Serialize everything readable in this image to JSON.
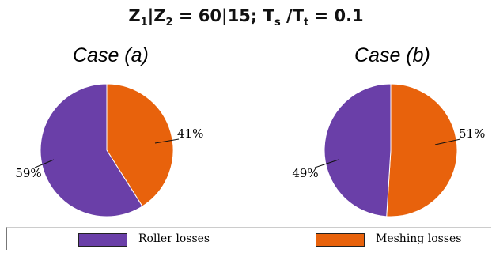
{
  "title": {
    "z1": "Z",
    "z1_sub": "1",
    "sep1": "|",
    "z2": "Z",
    "z2_sub": "2",
    "eq1": " = 60|15; ",
    "ts": "T",
    "ts_sub": "s",
    "slash": " /",
    "tt": "T",
    "tt_sub": "t",
    "eq2": " = 0.1"
  },
  "chart_data": [
    {
      "type": "pie",
      "title": "Case (a)",
      "categories": [
        "Roller losses",
        "Meshing losses"
      ],
      "values": [
        59,
        41
      ],
      "labels": [
        "59%",
        "41%"
      ],
      "colors": [
        "#6a3fa8",
        "#e8620c"
      ]
    },
    {
      "type": "pie",
      "title": "Case (b)",
      "categories": [
        "Roller losses",
        "Meshing losses"
      ],
      "values": [
        49,
        51
      ],
      "labels": [
        "49%",
        "51%"
      ],
      "colors": [
        "#6a3fa8",
        "#e8620c"
      ]
    }
  ],
  "legend": {
    "position": "bottom",
    "items": [
      {
        "label": "Roller losses",
        "color": "#6a3fa8"
      },
      {
        "label": "Meshing losses",
        "color": "#e8620c"
      }
    ]
  }
}
